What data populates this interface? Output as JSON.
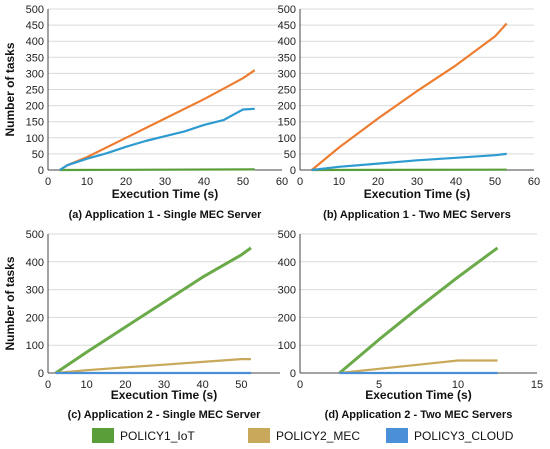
{
  "chart_data": [
    {
      "type": "line",
      "caption": "(a) Application 1 - Single MEC Server",
      "xlabel": "Execution Time (s)",
      "ylabel": "Number of tasks",
      "xlim": [
        0,
        60
      ],
      "ylim": [
        0,
        500
      ],
      "xticks": [
        0,
        10,
        20,
        30,
        40,
        50,
        60
      ],
      "yticks": [
        0,
        50,
        100,
        150,
        200,
        250,
        300,
        350,
        400,
        450,
        500
      ],
      "grid": "horizontal",
      "series": [
        {
          "name": "POLICY1_IoT",
          "x": [
            3,
            53
          ],
          "y": [
            0,
            2
          ]
        },
        {
          "name": "POLICY2_MEC",
          "x": [
            3,
            5,
            10,
            20,
            30,
            40,
            50,
            53
          ],
          "y": [
            0,
            15,
            40,
            100,
            160,
            220,
            285,
            310
          ]
        },
        {
          "name": "POLICY3_CLOUD",
          "x": [
            3,
            5,
            10,
            15,
            20,
            25,
            30,
            35,
            40,
            45,
            48,
            50,
            53
          ],
          "y": [
            0,
            15,
            35,
            52,
            72,
            90,
            105,
            120,
            140,
            155,
            175,
            188,
            190
          ]
        }
      ]
    },
    {
      "type": "line",
      "caption": "(b) Application 1 - Two MEC Servers",
      "xlabel": "Execution Time (s)",
      "ylabel": "",
      "xlim": [
        0,
        60
      ],
      "ylim": [
        0,
        500
      ],
      "xticks": [
        0,
        10,
        20,
        30,
        40,
        50,
        60
      ],
      "yticks": [
        0,
        50,
        100,
        150,
        200,
        250,
        300,
        350,
        400,
        450,
        500
      ],
      "grid": "horizontal",
      "series": [
        {
          "name": "POLICY1_IoT",
          "x": [
            3,
            53
          ],
          "y": [
            0,
            1
          ]
        },
        {
          "name": "POLICY2_MEC",
          "x": [
            3,
            5,
            10,
            20,
            30,
            40,
            50,
            53
          ],
          "y": [
            0,
            20,
            70,
            160,
            245,
            325,
            415,
            455
          ]
        },
        {
          "name": "POLICY3_CLOUD",
          "x": [
            3,
            10,
            20,
            30,
            40,
            50,
            53
          ],
          "y": [
            0,
            10,
            20,
            30,
            38,
            46,
            50
          ]
        }
      ]
    },
    {
      "type": "line",
      "caption": "(c) Application 2 - Single MEC Server",
      "xlabel": "Execution Time (s)",
      "ylabel": "Number of tasks",
      "xlim": [
        0,
        60
      ],
      "ylim": [
        0,
        500
      ],
      "xticks": [
        0,
        10,
        20,
        30,
        40,
        50
      ],
      "yticks": [
        0,
        100,
        200,
        300,
        400,
        500
      ],
      "grid": "horizontal",
      "series": [
        {
          "name": "POLICY1_IoT",
          "x": [
            2,
            10,
            20,
            30,
            40,
            50,
            52.5
          ],
          "y": [
            0,
            75,
            165,
            255,
            345,
            425,
            450
          ]
        },
        {
          "name": "POLICY2_MEC",
          "x": [
            2,
            10,
            20,
            30,
            40,
            50,
            52.5
          ],
          "y": [
            0,
            10,
            20,
            30,
            40,
            50,
            50
          ]
        },
        {
          "name": "POLICY3_CLOUD",
          "x": [
            2,
            52.5
          ],
          "y": [
            0,
            0
          ]
        }
      ]
    },
    {
      "type": "line",
      "caption": "(d) Application 2 - Two MEC Servers",
      "xlabel": "Execution Time (s)",
      "ylabel": "",
      "xlim": [
        0,
        15
      ],
      "ylim": [
        0,
        500
      ],
      "xticks": [
        0,
        5,
        10,
        15
      ],
      "yticks": [
        0,
        100,
        200,
        300,
        400,
        500
      ],
      "grid": "horizontal",
      "series": [
        {
          "name": "POLICY1_IoT",
          "x": [
            2.5,
            5,
            7.5,
            10,
            12.5
          ],
          "y": [
            0,
            120,
            235,
            345,
            450
          ]
        },
        {
          "name": "POLICY2_MEC",
          "x": [
            2.5,
            5,
            7.5,
            10,
            12.5
          ],
          "y": [
            0,
            15,
            30,
            45,
            45
          ]
        },
        {
          "name": "POLICY3_CLOUD",
          "x": [
            2.5,
            12.5
          ],
          "y": [
            0,
            0
          ]
        }
      ]
    }
  ],
  "legend": {
    "placement": "bottom",
    "items": [
      {
        "label": "POLICY1_IoT",
        "color": "#5a9e3a"
      },
      {
        "label": "POLICY2_MEC",
        "color": "#c8a85a"
      },
      {
        "label": "POLICY3_CLOUD",
        "color": "#4a90d9"
      }
    ]
  },
  "series_colors": {
    "POLICY1_IoT": "#5a9e3a",
    "POLICY2_MEC": "#ed7d31",
    "POLICY3_CLOUD": "#2e9bd0"
  },
  "series_colors_bottom": {
    "POLICY1_IoT": "#6aaa48",
    "POLICY2_MEC": "#c8a85a",
    "POLICY3_CLOUD": "#4a90d9"
  }
}
